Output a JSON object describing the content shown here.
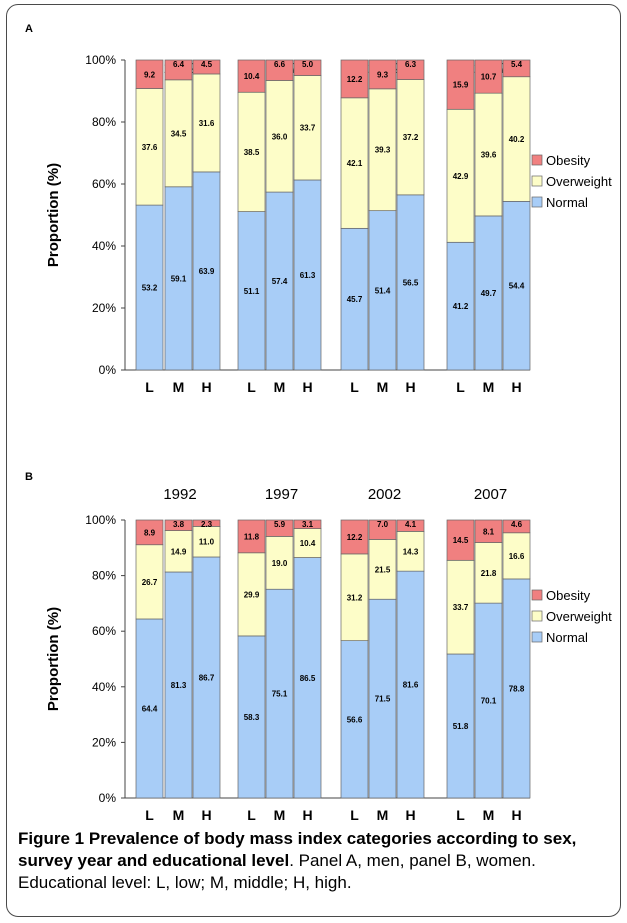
{
  "figure": {
    "caption_label": "Figure 1",
    "caption_title": "Prevalence of body mass index categories according to sex, survey year and educational level",
    "caption_text": ". Panel A, men, panel B, women. Educational level: L, low; M, middle; H, high."
  },
  "colors": {
    "Obesity": "#f08080",
    "Overweight": "#fdfdc8",
    "Normal": "#a8cdf7"
  },
  "chart_data": [
    {
      "type": "bar",
      "stacked": true,
      "panel_label": "A",
      "ylabel": "Proportion (%)",
      "ylim": [
        0,
        100
      ],
      "y_ticks": [
        "0%",
        "20%",
        "40%",
        "60%",
        "80%",
        "100%"
      ],
      "groups": [
        "1992",
        "1997",
        "2002",
        "2007"
      ],
      "categories": [
        "L",
        "M",
        "H"
      ],
      "legend": [
        "Obesity",
        "Overweight",
        "Normal"
      ],
      "legend_position": "right",
      "grid": false,
      "series": [
        {
          "name": "Normal",
          "values": [
            [
              53.2,
              59.1,
              63.9
            ],
            [
              51.1,
              57.4,
              61.3
            ],
            [
              45.7,
              51.4,
              56.5
            ],
            [
              41.2,
              49.7,
              54.4
            ]
          ]
        },
        {
          "name": "Overweight",
          "values": [
            [
              37.6,
              34.5,
              31.6
            ],
            [
              38.5,
              36.0,
              33.7
            ],
            [
              42.1,
              39.3,
              37.2
            ],
            [
              42.9,
              39.6,
              40.2
            ]
          ]
        },
        {
          "name": "Obesity",
          "values": [
            [
              9.2,
              6.4,
              4.5
            ],
            [
              10.4,
              6.6,
              5.0
            ],
            [
              12.2,
              9.3,
              6.3
            ],
            [
              15.9,
              10.7,
              5.4
            ]
          ]
        }
      ]
    },
    {
      "type": "bar",
      "stacked": true,
      "panel_label": "B",
      "ylabel": "Proportion (%)",
      "ylim": [
        0,
        100
      ],
      "y_ticks": [
        "0%",
        "20%",
        "40%",
        "60%",
        "80%",
        "100%"
      ],
      "groups": [
        "1992",
        "1997",
        "2002",
        "2007"
      ],
      "categories": [
        "L",
        "M",
        "H"
      ],
      "legend": [
        "Obesity",
        "Overweight",
        "Normal"
      ],
      "legend_position": "right",
      "grid": false,
      "series": [
        {
          "name": "Normal",
          "values": [
            [
              64.4,
              81.3,
              86.7
            ],
            [
              58.3,
              75.1,
              86.5
            ],
            [
              56.6,
              71.5,
              81.6
            ],
            [
              51.8,
              70.1,
              78.8
            ]
          ]
        },
        {
          "name": "Overweight",
          "values": [
            [
              26.7,
              14.9,
              11.0
            ],
            [
              29.9,
              19.0,
              10.4
            ],
            [
              31.2,
              21.5,
              14.3
            ],
            [
              33.7,
              21.8,
              16.6
            ]
          ]
        },
        {
          "name": "Obesity",
          "values": [
            [
              8.9,
              3.8,
              2.3
            ],
            [
              11.8,
              5.9,
              3.1
            ],
            [
              12.2,
              7.0,
              4.1
            ],
            [
              14.5,
              8.1,
              4.6
            ]
          ]
        }
      ]
    }
  ]
}
